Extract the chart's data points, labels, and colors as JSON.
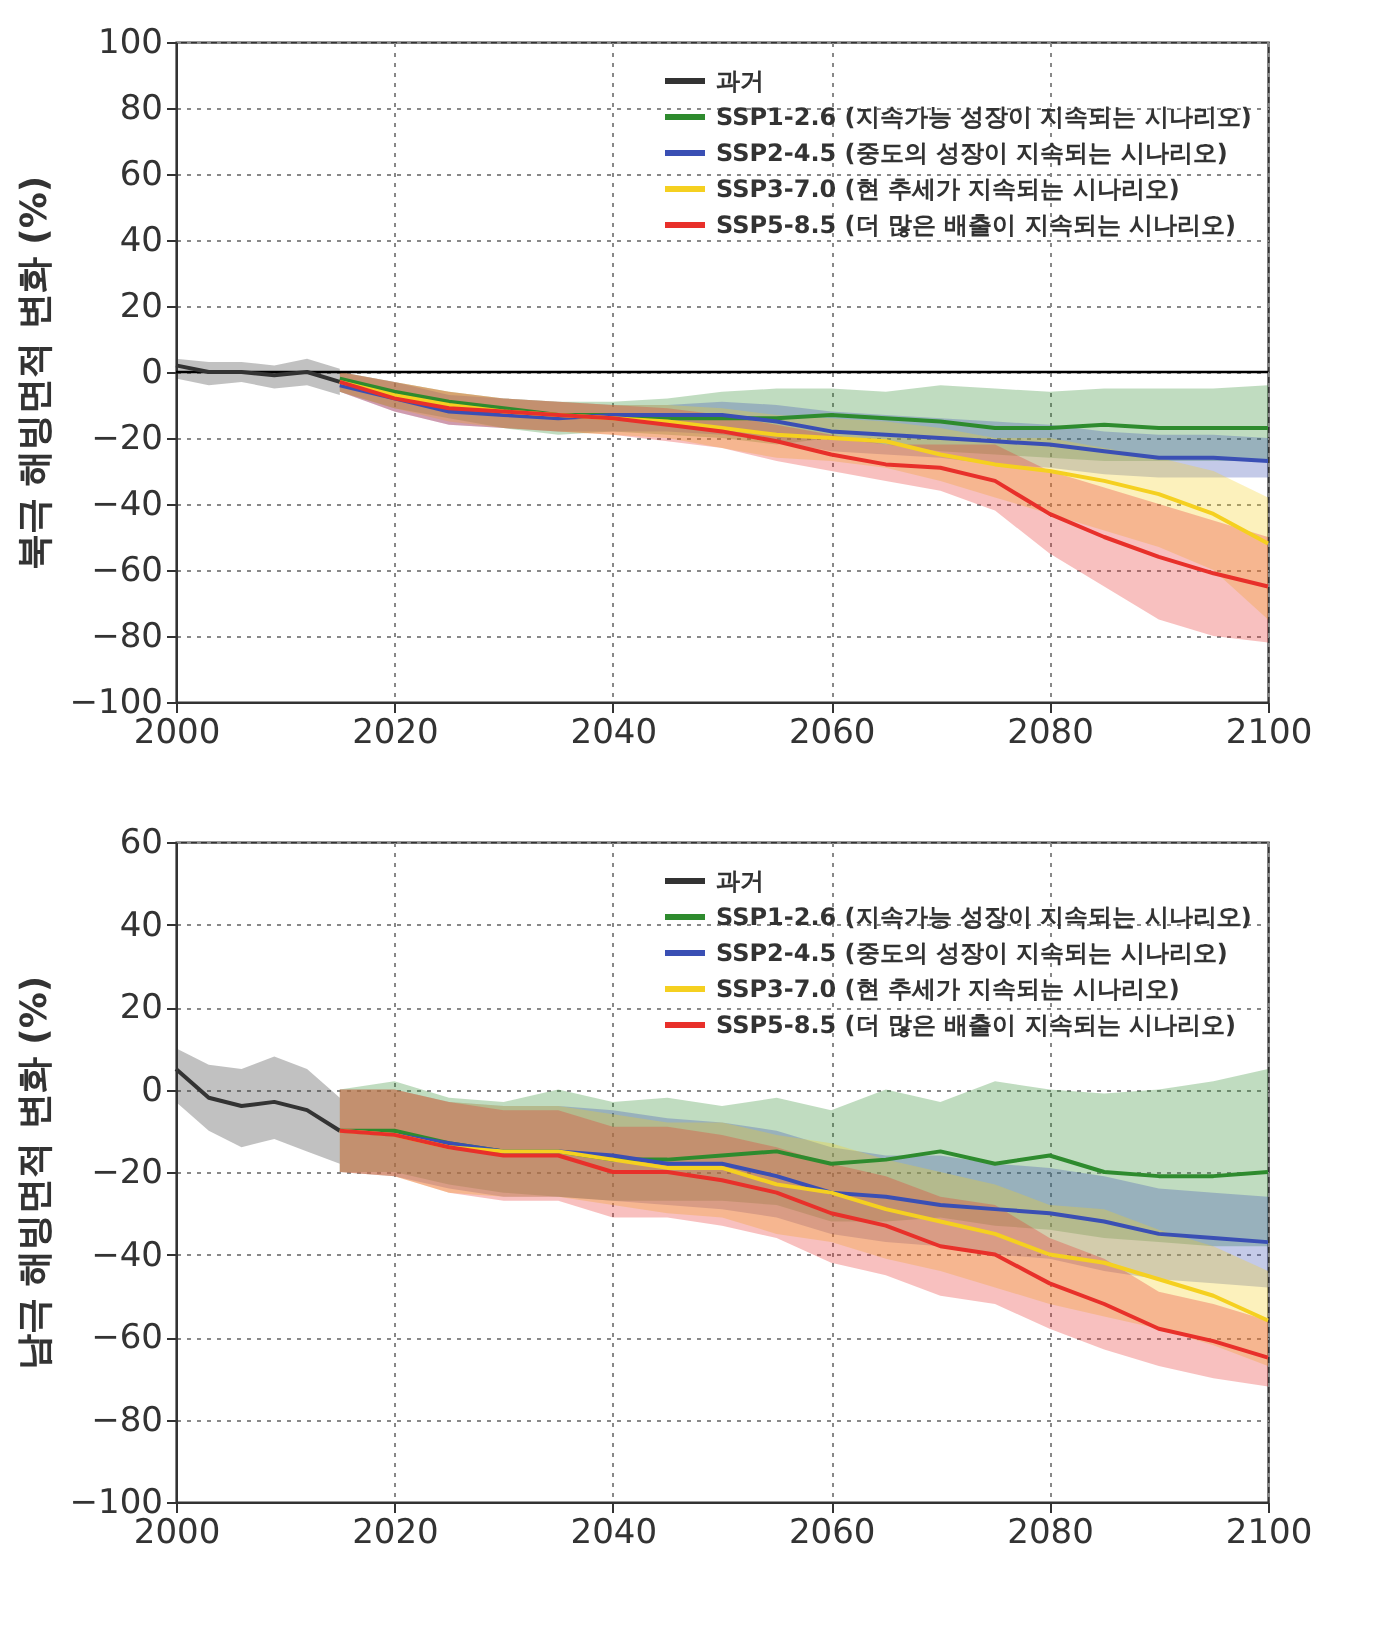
{
  "chart_data": [
    {
      "type": "line",
      "ylabel": "북극 해빙면적 변화 (%)",
      "xlim": [
        2000,
        2100
      ],
      "xticks": [
        2000,
        2020,
        2040,
        2060,
        2080,
        2100
      ],
      "ylim": [
        -100,
        100
      ],
      "yticks": [
        -100,
        -80,
        -60,
        -40,
        -20,
        0,
        20,
        40,
        60,
        80,
        100
      ],
      "grid": true,
      "legend": "top right",
      "ref_lines": [
        {
          "axis": "y",
          "value": 0,
          "color": "#000000"
        }
      ],
      "series": [
        {
          "name": "과거",
          "color": "#333333",
          "x": [
            2000,
            2003,
            2006,
            2009,
            2012,
            2015
          ],
          "values": [
            2,
            0,
            0,
            -1,
            0,
            -3
          ],
          "lower": [
            -2,
            -4,
            -3,
            -5,
            -4,
            -7
          ],
          "upper": [
            4,
            3,
            3,
            2,
            4,
            1
          ]
        },
        {
          "name": "SSP1-2.6 (지속가능 성장이 지속되는 시나리오)",
          "color": "#2e8b2e",
          "x": [
            2015,
            2020,
            2025,
            2030,
            2035,
            2040,
            2045,
            2050,
            2055,
            2060,
            2065,
            2070,
            2075,
            2080,
            2085,
            2090,
            2095,
            2100
          ],
          "values": [
            -2,
            -6,
            -9,
            -11,
            -13,
            -13,
            -14,
            -14,
            -14,
            -13,
            -14,
            -15,
            -17,
            -17,
            -16,
            -17,
            -17,
            -17
          ],
          "lower": [
            -6,
            -11,
            -14,
            -17,
            -19,
            -18,
            -19,
            -20,
            -22,
            -20,
            -22,
            -24,
            -25,
            -26,
            -27,
            -27,
            -27,
            -27
          ],
          "upper": [
            0,
            -3,
            -6,
            -8,
            -9,
            -9,
            -8,
            -6,
            -5,
            -5,
            -6,
            -4,
            -5,
            -6,
            -5,
            -5,
            -5,
            -4
          ]
        },
        {
          "name": "SSP2-4.5 (중도의 성장이 지속되는 시나리오)",
          "color": "#3a4fb4",
          "x": [
            2015,
            2020,
            2025,
            2030,
            2035,
            2040,
            2045,
            2050,
            2055,
            2060,
            2065,
            2070,
            2075,
            2080,
            2085,
            2090,
            2095,
            2100
          ],
          "values": [
            -4,
            -8,
            -12,
            -13,
            -14,
            -13,
            -13,
            -13,
            -15,
            -18,
            -19,
            -20,
            -21,
            -22,
            -24,
            -26,
            -26,
            -27
          ],
          "lower": [
            -6,
            -12,
            -16,
            -17,
            -18,
            -18,
            -18,
            -19,
            -21,
            -24,
            -25,
            -26,
            -28,
            -29,
            -31,
            -32,
            -32,
            -32
          ],
          "upper": [
            0,
            -3,
            -7,
            -8,
            -9,
            -10,
            -10,
            -9,
            -10,
            -12,
            -13,
            -14,
            -15,
            -16,
            -18,
            -19,
            -19,
            -20
          ]
        },
        {
          "name": "SSP3-7.0 (현 추세가 지속되는 시나리오)",
          "color": "#f5d020",
          "x": [
            2015,
            2020,
            2025,
            2030,
            2035,
            2040,
            2045,
            2050,
            2055,
            2060,
            2065,
            2070,
            2075,
            2080,
            2085,
            2090,
            2095,
            2100
          ],
          "values": [
            -3,
            -7,
            -10,
            -12,
            -13,
            -14,
            -15,
            -17,
            -19,
            -20,
            -21,
            -25,
            -28,
            -30,
            -33,
            -37,
            -43,
            -52
          ],
          "lower": [
            -6,
            -11,
            -15,
            -17,
            -18,
            -19,
            -20,
            -23,
            -26,
            -27,
            -29,
            -33,
            -38,
            -43,
            -48,
            -53,
            -60,
            -75
          ],
          "upper": [
            0,
            -3,
            -6,
            -8,
            -9,
            -10,
            -10,
            -11,
            -13,
            -14,
            -15,
            -17,
            -20,
            -20,
            -23,
            -26,
            -30,
            -38
          ]
        },
        {
          "name": "SSP5-8.5 (더 많은 배출이 지속되는 시나리오)",
          "color": "#e8302a",
          "x": [
            2015,
            2020,
            2025,
            2030,
            2035,
            2040,
            2045,
            2050,
            2055,
            2060,
            2065,
            2070,
            2075,
            2080,
            2085,
            2090,
            2095,
            2100
          ],
          "values": [
            -3,
            -8,
            -11,
            -12,
            -13,
            -14,
            -16,
            -18,
            -21,
            -25,
            -28,
            -29,
            -33,
            -43,
            -50,
            -56,
            -61,
            -65
          ],
          "lower": [
            -6,
            -12,
            -16,
            -17,
            -18,
            -19,
            -21,
            -23,
            -27,
            -30,
            -33,
            -36,
            -42,
            -55,
            -65,
            -75,
            -80,
            -82
          ],
          "upper": [
            0,
            -3,
            -6,
            -8,
            -9,
            -10,
            -11,
            -13,
            -16,
            -19,
            -22,
            -22,
            -22,
            -30,
            -35,
            -40,
            -45,
            -50
          ]
        }
      ]
    },
    {
      "type": "line",
      "ylabel": "남극 해빙면적 변화 (%)",
      "xlim": [
        2000,
        2100
      ],
      "xticks": [
        2000,
        2020,
        2040,
        2060,
        2080,
        2100
      ],
      "ylim": [
        -100,
        60
      ],
      "yticks": [
        -100,
        -80,
        -60,
        -40,
        -20,
        0,
        20,
        40,
        60
      ],
      "grid": true,
      "legend": "top right",
      "series": [
        {
          "name": "과거",
          "color": "#333333",
          "x": [
            2000,
            2003,
            2006,
            2009,
            2012,
            2015
          ],
          "values": [
            5,
            -2,
            -4,
            -3,
            -5,
            -10
          ],
          "lower": [
            -3,
            -10,
            -14,
            -12,
            -15,
            -18
          ],
          "upper": [
            10,
            6,
            5,
            8,
            5,
            -2
          ]
        },
        {
          "name": "SSP1-2.6 (지속가능 성장이 지속되는 시나리오)",
          "color": "#2e8b2e",
          "x": [
            2015,
            2020,
            2025,
            2030,
            2035,
            2040,
            2045,
            2050,
            2055,
            2060,
            2065,
            2070,
            2075,
            2080,
            2085,
            2090,
            2095,
            2100
          ],
          "values": [
            -10,
            -10,
            -13,
            -15,
            -15,
            -17,
            -17,
            -16,
            -15,
            -18,
            -17,
            -15,
            -18,
            -16,
            -20,
            -21,
            -21,
            -20
          ],
          "lower": [
            -20,
            -20,
            -23,
            -25,
            -26,
            -27,
            -27,
            -27,
            -28,
            -32,
            -32,
            -31,
            -33,
            -34,
            -36,
            -37,
            -38,
            -38
          ],
          "upper": [
            0,
            2,
            -2,
            -3,
            0,
            -3,
            -2,
            -4,
            -2,
            -5,
            0,
            -3,
            2,
            0,
            -1,
            0,
            2,
            5
          ]
        },
        {
          "name": "SSP2-4.5 (중도의 성장이 지속되는 시나리오)",
          "color": "#3a4fb4",
          "x": [
            2015,
            2020,
            2025,
            2030,
            2035,
            2040,
            2045,
            2050,
            2055,
            2060,
            2065,
            2070,
            2075,
            2080,
            2085,
            2090,
            2095,
            2100
          ],
          "values": [
            -10,
            -11,
            -13,
            -15,
            -15,
            -16,
            -18,
            -18,
            -21,
            -25,
            -26,
            -28,
            -29,
            -30,
            -32,
            -35,
            -36,
            -37
          ],
          "lower": [
            -20,
            -21,
            -24,
            -26,
            -26,
            -27,
            -28,
            -29,
            -31,
            -35,
            -37,
            -38,
            -40,
            -41,
            -44,
            -46,
            -47,
            -48
          ],
          "upper": [
            0,
            0,
            -3,
            -4,
            -4,
            -5,
            -7,
            -8,
            -10,
            -14,
            -16,
            -16,
            -18,
            -19,
            -21,
            -24,
            -25,
            -26
          ]
        },
        {
          "name": "SSP3-7.0 (현 추세가 지속되는 시나리오)",
          "color": "#f5d020",
          "x": [
            2015,
            2020,
            2025,
            2030,
            2035,
            2040,
            2045,
            2050,
            2055,
            2060,
            2065,
            2070,
            2075,
            2080,
            2085,
            2090,
            2095,
            2100
          ],
          "values": [
            -10,
            -11,
            -14,
            -15,
            -15,
            -17,
            -19,
            -19,
            -23,
            -25,
            -29,
            -32,
            -35,
            -40,
            -42,
            -46,
            -50,
            -56
          ],
          "lower": [
            -20,
            -21,
            -25,
            -26,
            -26,
            -28,
            -30,
            -31,
            -35,
            -37,
            -41,
            -44,
            -48,
            -52,
            -55,
            -58,
            -62,
            -67
          ],
          "upper": [
            0,
            0,
            -3,
            -4,
            -4,
            -6,
            -8,
            -8,
            -11,
            -13,
            -17,
            -20,
            -23,
            -28,
            -29,
            -34,
            -38,
            -44
          ]
        },
        {
          "name": "SSP5-8.5 (더 많은 배출이 지속되는 시나리오)",
          "color": "#e8302a",
          "x": [
            2015,
            2020,
            2025,
            2030,
            2035,
            2040,
            2045,
            2050,
            2055,
            2060,
            2065,
            2070,
            2075,
            2080,
            2085,
            2090,
            2095,
            2100
          ],
          "values": [
            -10,
            -11,
            -14,
            -16,
            -16,
            -20,
            -20,
            -22,
            -25,
            -30,
            -33,
            -38,
            -40,
            -47,
            -52,
            -58,
            -61,
            -65
          ],
          "lower": [
            -20,
            -21,
            -25,
            -27,
            -27,
            -31,
            -31,
            -33,
            -36,
            -42,
            -45,
            -50,
            -52,
            -58,
            -63,
            -67,
            -70,
            -72
          ],
          "upper": [
            0,
            0,
            -3,
            -5,
            -5,
            -9,
            -9,
            -11,
            -14,
            -18,
            -21,
            -26,
            -28,
            -36,
            -41,
            -49,
            -52,
            -56
          ]
        }
      ]
    }
  ]
}
